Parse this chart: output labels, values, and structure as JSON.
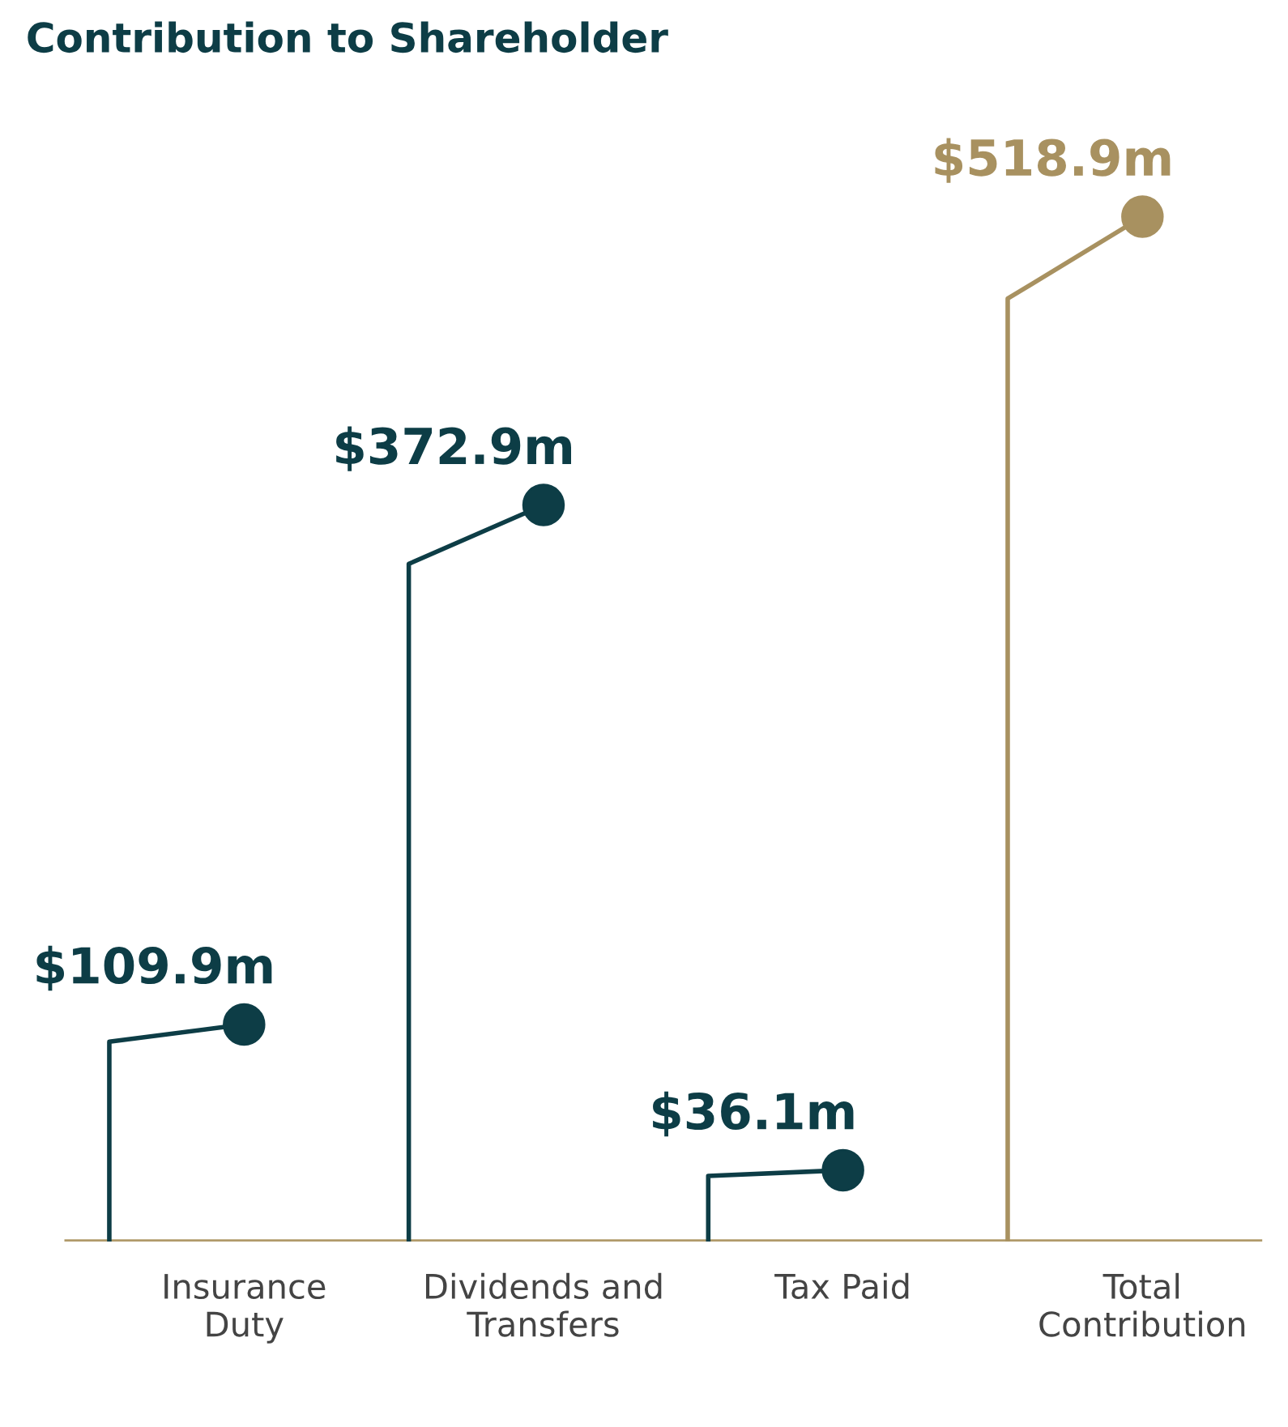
{
  "chart_data": {
    "type": "lollipop",
    "title": "Contribution to Shareholder",
    "categories": [
      "Insurance\nDuty",
      "Dividends and\nTransfers",
      "Tax Paid",
      "Total\nContribution"
    ],
    "values": [
      109.9,
      372.9,
      36.1,
      518.9
    ],
    "value_labels": [
      "$109.9m",
      "$372.9m",
      "$36.1m",
      "$518.9m"
    ],
    "colors": [
      "#0d3d46",
      "#0d3d46",
      "#0d3d46",
      "#a89160"
    ],
    "legend": false
  }
}
